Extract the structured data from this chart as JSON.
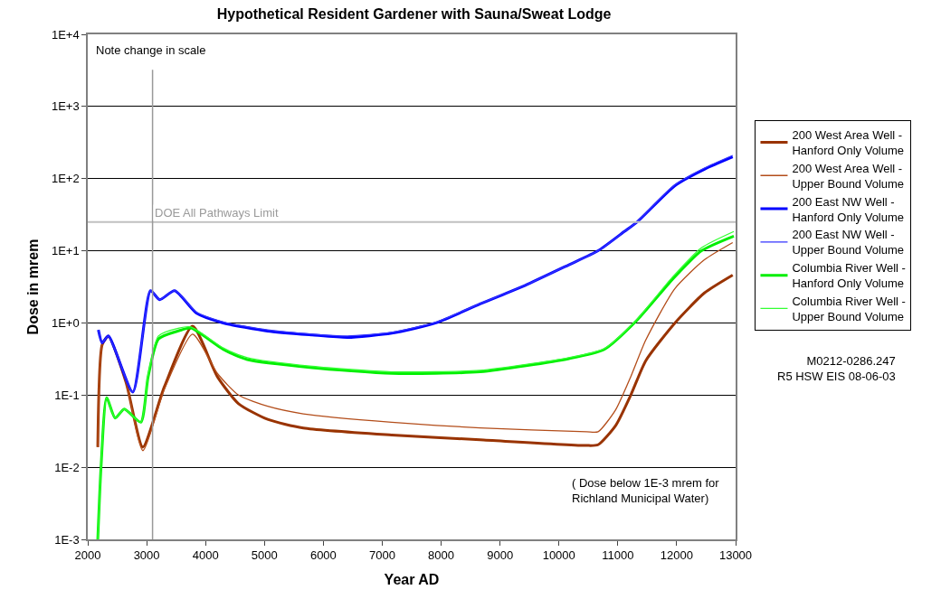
{
  "chart_data": {
    "type": "line",
    "title": "Hypothetical Resident Gardener with Sauna/Sweat Lodge",
    "xlabel": "Year AD",
    "ylabel": "Dose in mrem",
    "log": "y",
    "grid": "y",
    "legend": "right",
    "line_style": "solid",
    "marker": "none",
    "xlim": [
      2000,
      13000
    ],
    "xticks": [
      2000,
      3000,
      4000,
      5000,
      6000,
      7000,
      8000,
      9000,
      10000,
      11000,
      12000,
      13000
    ],
    "ylim": [
      0.001,
      10000
    ],
    "yticks": [
      {
        "value": 0.001,
        "label": "1E-3"
      },
      {
        "value": 0.01,
        "label": "1E-2"
      },
      {
        "value": 0.1,
        "label": "1E-1"
      },
      {
        "value": 1,
        "label": "1E+0"
      },
      {
        "value": 10,
        "label": "1E+1"
      },
      {
        "value": 100,
        "label": "1E+2"
      },
      {
        "value": 1000,
        "label": "1E+3"
      },
      {
        "value": 10000,
        "label": "1E+4"
      }
    ],
    "ref_lines": [
      {
        "axis": "y",
        "value": 25,
        "label": "DOE All Pathways Limit",
        "color": "#c0c0c0"
      },
      {
        "axis": "x",
        "value": 3100,
        "color": "#999999"
      }
    ],
    "annotations": [
      "Note change in scale",
      "( Dose below 1E-3 mrem for\nRichland Municipal Water)",
      "M0212-0286.247\nR5 HSW EIS 08-06-03"
    ],
    "series": [
      {
        "name": "200 West Area Well -\nHanford Only Volume",
        "color": "#993300",
        "x": [
          2170,
          2245,
          2350,
          2650,
          2935,
          3300,
          3780,
          4200,
          4560,
          5055,
          5660,
          7160,
          8660,
          10470,
          10665,
          10965,
          11220,
          11475,
          11970,
          12470,
          12950
        ],
        "values": [
          0.019,
          0.5,
          0.65,
          0.15,
          0.019,
          0.13,
          0.9,
          0.18,
          0.076,
          0.046,
          0.035,
          0.028,
          0.024,
          0.02,
          0.0205,
          0.038,
          0.1,
          0.3,
          1.0,
          2.6,
          4.6
        ]
      },
      {
        "name": "200 West Area Well -\nUpper Bound Volume",
        "color": "#b34d1a",
        "x": [
          2170,
          2245,
          2350,
          2650,
          2935,
          3300,
          3780,
          4200,
          4560,
          5055,
          5660,
          7160,
          8660,
          10470,
          10665,
          10965,
          11220,
          11475,
          11970,
          12470,
          12950
        ],
        "values": [
          0.019,
          0.5,
          0.65,
          0.15,
          0.017,
          0.12,
          0.7,
          0.2,
          0.1,
          0.07,
          0.055,
          0.042,
          0.035,
          0.031,
          0.031,
          0.063,
          0.18,
          0.58,
          3.0,
          7.5,
          13
        ]
      },
      {
        "name": "200 East NW Well -\nHanford Only Volume",
        "color": "#0000ff",
        "x": [
          2180,
          2245,
          2350,
          2765,
          3065,
          3220,
          3475,
          3850,
          4300,
          5055,
          5810,
          6410,
          7160,
          7910,
          8660,
          9420,
          10170,
          10665,
          11115,
          11325,
          11970,
          12470,
          12950
        ],
        "values": [
          0.8,
          0.53,
          0.66,
          0.11,
          2.8,
          2.1,
          2.8,
          1.36,
          1.0,
          0.77,
          0.68,
          0.63,
          0.72,
          1.0,
          1.83,
          3.3,
          6.4,
          10,
          18.6,
          25,
          80,
          135,
          200
        ]
      },
      {
        "name": "200 East NW Well -\nUpper Bound Volume",
        "color": "#3333ff",
        "x": [
          2180,
          2245,
          2350,
          2765,
          3065,
          3220,
          3475,
          3850,
          4300,
          5055,
          5810,
          6410,
          7160,
          7910,
          8660,
          9420,
          10170,
          10665,
          11115,
          11325,
          11970,
          12470,
          12950
        ],
        "values": [
          0.8,
          0.53,
          0.66,
          0.11,
          2.8,
          2.1,
          2.8,
          1.4,
          1.03,
          0.8,
          0.7,
          0.66,
          0.74,
          1.02,
          1.85,
          3.3,
          6.4,
          10,
          18.6,
          25,
          82,
          140,
          210
        ]
      },
      {
        "name": "Columbia River Well -\nHanford Only Volume",
        "color": "#00ee00",
        "x": [
          2170,
          2225,
          2320,
          2465,
          2620,
          2900,
          3025,
          3200,
          3550,
          3750,
          4300,
          4710,
          5810,
          7160,
          8660,
          10170,
          10770,
          11325,
          11925,
          12420,
          12970
        ],
        "values": [
          0.001,
          0.01,
          0.092,
          0.048,
          0.064,
          0.042,
          0.18,
          0.6,
          0.78,
          0.85,
          0.43,
          0.31,
          0.24,
          0.2,
          0.21,
          0.32,
          0.43,
          1.09,
          4.0,
          10,
          16
        ]
      },
      {
        "name": "Columbia River Well -\nUpper Bound Volume",
        "color": "#33ff33",
        "x": [
          2170,
          2225,
          2320,
          2465,
          2620,
          2900,
          3025,
          3200,
          3550,
          3750,
          4300,
          4710,
          5810,
          7160,
          8660,
          10170,
          10770,
          11325,
          11925,
          12420,
          12970
        ],
        "values": [
          0.001,
          0.01,
          0.092,
          0.048,
          0.064,
          0.042,
          0.19,
          0.66,
          0.85,
          0.88,
          0.45,
          0.33,
          0.25,
          0.21,
          0.22,
          0.33,
          0.44,
          1.12,
          4.3,
          11,
          18.5
        ]
      }
    ]
  }
}
